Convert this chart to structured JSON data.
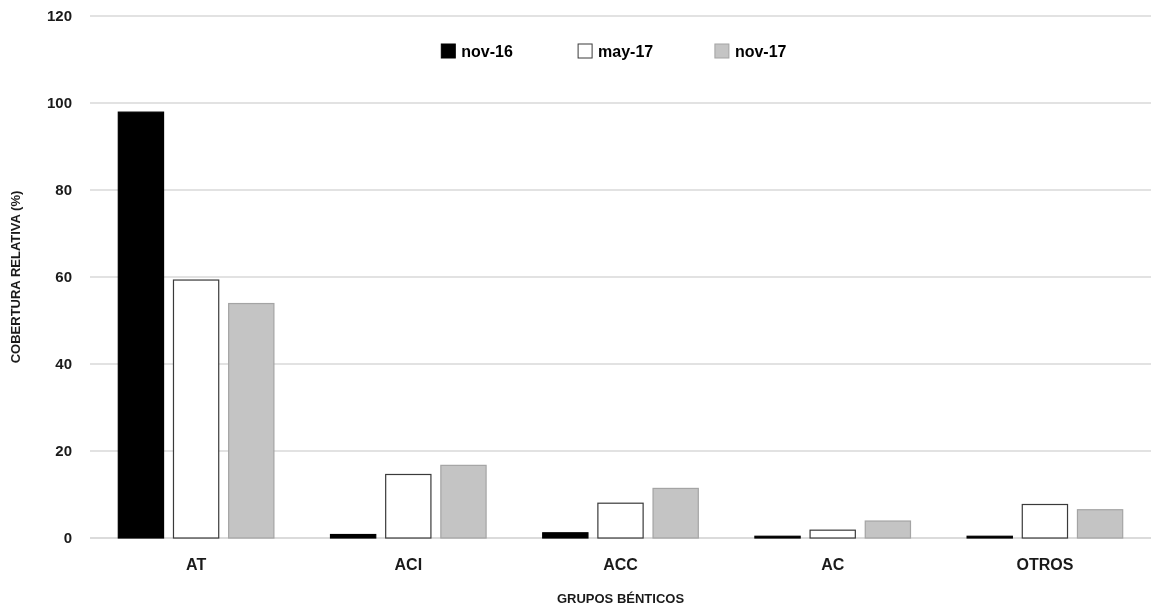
{
  "chart_data": {
    "type": "bar",
    "xlabel": "GRUPOS BÉNTICOS",
    "ylabel": "COBERTURA RELATIVA (%)",
    "categories": [
      "AT",
      "ACI",
      "ACC",
      "AC",
      "OTROS"
    ],
    "series": [
      {
        "name": "nov-16",
        "color": "#000000",
        "values": [
          97.9,
          0.8,
          1.2,
          0.4,
          0.4
        ]
      },
      {
        "name": "may-17",
        "color": "#ffffff",
        "values": [
          59.3,
          14.6,
          8.0,
          1.8,
          7.7
        ]
      },
      {
        "name": "nov-17",
        "color": "#c4c4c4",
        "values": [
          53.9,
          16.7,
          11.4,
          3.9,
          6.5
        ]
      }
    ],
    "ylim": [
      0,
      120
    ],
    "yticks": [
      0,
      20,
      40,
      60,
      80,
      100,
      120
    ],
    "grid": "y",
    "legend": "top"
  }
}
